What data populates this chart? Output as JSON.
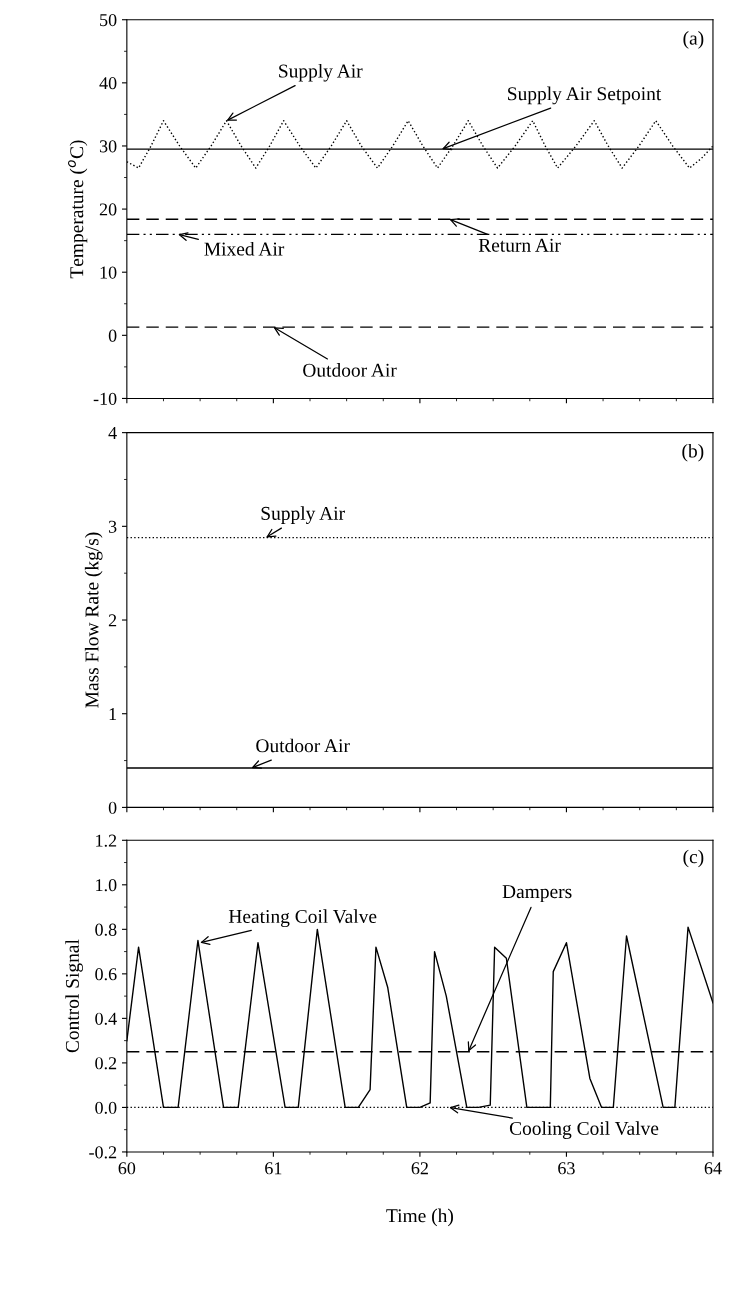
{
  "chart_data": [
    {
      "type": "line",
      "ylabel": "Temperature ($^{o}$C)",
      "xlim": [
        60,
        64
      ],
      "xticks": [
        60,
        61,
        62,
        63,
        64
      ],
      "ylim": [
        -10,
        50
      ],
      "yticks": [
        -10,
        0,
        10,
        20,
        30,
        40,
        50
      ],
      "tick_labels": "y",
      "grid": false,
      "legend": false,
      "series": [
        {
          "color": "#000000",
          "line_style": "dotted",
          "x": [
            60.0,
            60.08,
            60.165,
            60.25,
            60.36,
            60.47,
            60.575,
            60.68,
            60.78,
            60.88,
            60.975,
            61.07,
            61.18,
            61.29,
            61.395,
            61.5,
            61.6,
            61.71,
            61.815,
            61.92,
            62.02,
            62.12,
            62.225,
            62.33,
            62.43,
            62.53,
            62.65,
            62.77,
            62.855,
            62.94,
            63.065,
            63.19,
            63.285,
            63.38,
            63.495,
            63.61,
            63.725,
            63.84,
            63.92,
            64.0
          ],
          "values": [
            27.5,
            26.5,
            30,
            34,
            30,
            26.5,
            30,
            34,
            30,
            26.5,
            30,
            34,
            30,
            26.5,
            30,
            34,
            30,
            26.5,
            30,
            34,
            30,
            26.5,
            30,
            34,
            30,
            26.5,
            30,
            34,
            30,
            26.5,
            30,
            34,
            30,
            26.5,
            30,
            34,
            30,
            26.5,
            28,
            30
          ]
        },
        {
          "color": "#000000",
          "line_style": "solid",
          "x": [
            60,
            64
          ],
          "values": [
            29.5,
            29.5
          ]
        },
        {
          "color": "#000000",
          "line_style": "dashed",
          "x": [
            60,
            64
          ],
          "values": [
            18.4,
            18.4
          ]
        },
        {
          "color": "#000000",
          "line_style": "dashdot",
          "x": [
            60,
            64
          ],
          "values": [
            16.0,
            16.0
          ]
        },
        {
          "color": "#000000",
          "line_style": "dashed",
          "x": [
            60,
            64
          ],
          "values": [
            1.3,
            1.3
          ]
        }
      ],
      "annotations": [
        "(a)",
        {
          "text": "Supply Air",
          "x": 60.68,
          "y": 34
        },
        {
          "text": "Supply Air Setpoint",
          "x": 62.15,
          "y": 29.5
        },
        {
          "text": "Return Air",
          "x": 62.2,
          "y": 18.4
        },
        {
          "text": "Mixed Air",
          "x": 60.35,
          "y": 16.0
        },
        {
          "text": "Outdoor Air",
          "x": 61.0,
          "y": 1.3
        }
      ]
    },
    {
      "type": "line",
      "ylabel": "Mass Flow Rate (kg/s)",
      "xlim": [
        60,
        64
      ],
      "xticks": [
        60,
        61,
        62,
        63,
        64
      ],
      "ylim": [
        0,
        4
      ],
      "yticks": [
        0,
        1,
        2,
        3,
        4
      ],
      "tick_labels": "y",
      "grid": false,
      "legend": false,
      "series": [
        {
          "color": "#000000",
          "line_style": "dotted",
          "x": [
            60,
            64
          ],
          "values": [
            2.88,
            2.88
          ]
        },
        {
          "color": "#000000",
          "line_style": "solid",
          "x": [
            60,
            64
          ],
          "values": [
            0.42,
            0.42
          ]
        }
      ],
      "annotations": [
        "(b)",
        {
          "text": "Supply Air",
          "x": 60.95,
          "y": 2.88
        },
        {
          "text": "Outdoor Air",
          "x": 60.85,
          "y": 0.42
        }
      ]
    },
    {
      "type": "line",
      "xlabel": "Time (h)",
      "ylabel": "Control Signal",
      "xlim": [
        60,
        64
      ],
      "xticks": [
        60,
        61,
        62,
        63,
        64
      ],
      "ylim": [
        -0.2,
        1.2
      ],
      "yticks": [
        {
          "value": -0.2,
          "label": "-0.2"
        },
        {
          "value": 0.0,
          "label": "0.0"
        },
        {
          "value": 0.2,
          "label": "0.2"
        },
        {
          "value": 0.4,
          "label": "0.4"
        },
        {
          "value": 0.6,
          "label": "0.6"
        },
        {
          "value": 0.8,
          "label": "0.8"
        },
        {
          "value": 1.0,
          "label": "1.0"
        },
        {
          "value": 1.2,
          "label": "1.2"
        }
      ],
      "grid": false,
      "legend": false,
      "series": [
        {
          "color": "#000000",
          "line_style": "solid",
          "x": [
            60.0,
            60.08,
            60.25,
            60.35,
            60.485,
            60.66,
            60.76,
            60.895,
            61.08,
            61.17,
            61.3,
            61.49,
            61.58,
            61.66,
            61.7,
            61.78,
            61.91,
            62.0,
            62.07,
            62.1,
            62.18,
            62.32,
            62.4,
            62.48,
            62.51,
            62.59,
            62.73,
            62.89,
            62.91,
            63.0,
            63.16,
            63.24,
            63.32,
            63.41,
            63.66,
            63.74,
            63.83,
            64.0
          ],
          "values": [
            0.3,
            0.72,
            0.0,
            0.0,
            0.75,
            0.0,
            0.0,
            0.74,
            0.0,
            0.0,
            0.8,
            0.0,
            0.0,
            0.08,
            0.72,
            0.54,
            0.0,
            0.0,
            0.02,
            0.7,
            0.5,
            0.0,
            0.0,
            0.01,
            0.72,
            0.67,
            0.0,
            0.0,
            0.61,
            0.74,
            0.13,
            0.0,
            0.0,
            0.77,
            0.0,
            0.0,
            0.81,
            0.47
          ]
        },
        {
          "color": "#000000",
          "line_style": "dashed",
          "x": [
            60,
            64
          ],
          "values": [
            0.25,
            0.25
          ]
        },
        {
          "color": "#000000",
          "line_style": "dotted",
          "x": [
            60,
            64
          ],
          "values": [
            0.0,
            0.0
          ]
        }
      ],
      "annotations": [
        "(c)",
        {
          "text": "Heating Coil Valve",
          "x": 60.5,
          "y": 0.74
        },
        {
          "text": "Dampers",
          "x": 62.33,
          "y": 0.25
        },
        {
          "text": "Cooling Coil Valve",
          "x": 62.2,
          "y": 0.0
        }
      ]
    }
  ]
}
